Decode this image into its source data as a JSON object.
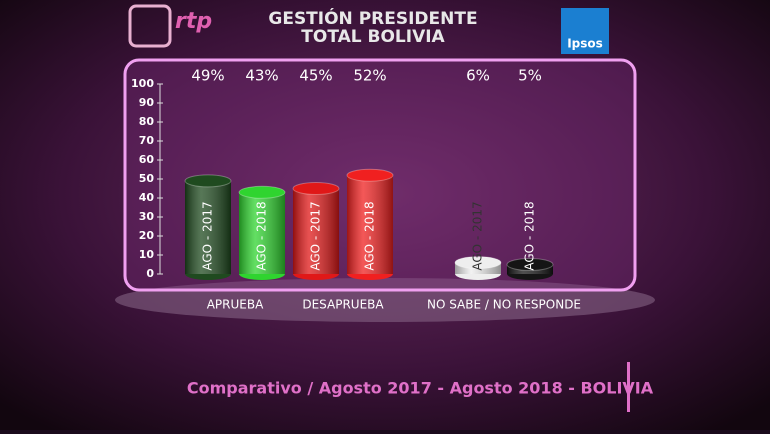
{
  "chart_data": {
    "type": "bar",
    "title": "GESTIÓN PRESIDENTE",
    "subtitle": "TOTAL BOLIVIA",
    "logos": [
      "rtp",
      "Ipsos"
    ],
    "categories": [
      "AGO - 2017",
      "AGO - 2018",
      "AGO - 2017",
      "AGO - 2018",
      "AGO - 2017",
      "AGO - 2018"
    ],
    "groups": [
      "APRUEBA",
      "DESAPRUEBA",
      "NO SABE / NO RESPONDE"
    ],
    "values": [
      49,
      43,
      45,
      52,
      6,
      5
    ],
    "value_labels": [
      "49%",
      "43%",
      "45%",
      "52%",
      "6%",
      "5%"
    ],
    "colors": [
      "#1f4a1f",
      "#2fd42f",
      "#e01818",
      "#f02020",
      "#eeeeee",
      "#151515"
    ],
    "ylim": [
      0,
      100
    ],
    "yticks": [
      0,
      10,
      20,
      30,
      40,
      50,
      60,
      70,
      80,
      90,
      100
    ],
    "footer": "Comparativo / Agosto 2017 - Agosto 2018 - BOLIVIA"
  }
}
